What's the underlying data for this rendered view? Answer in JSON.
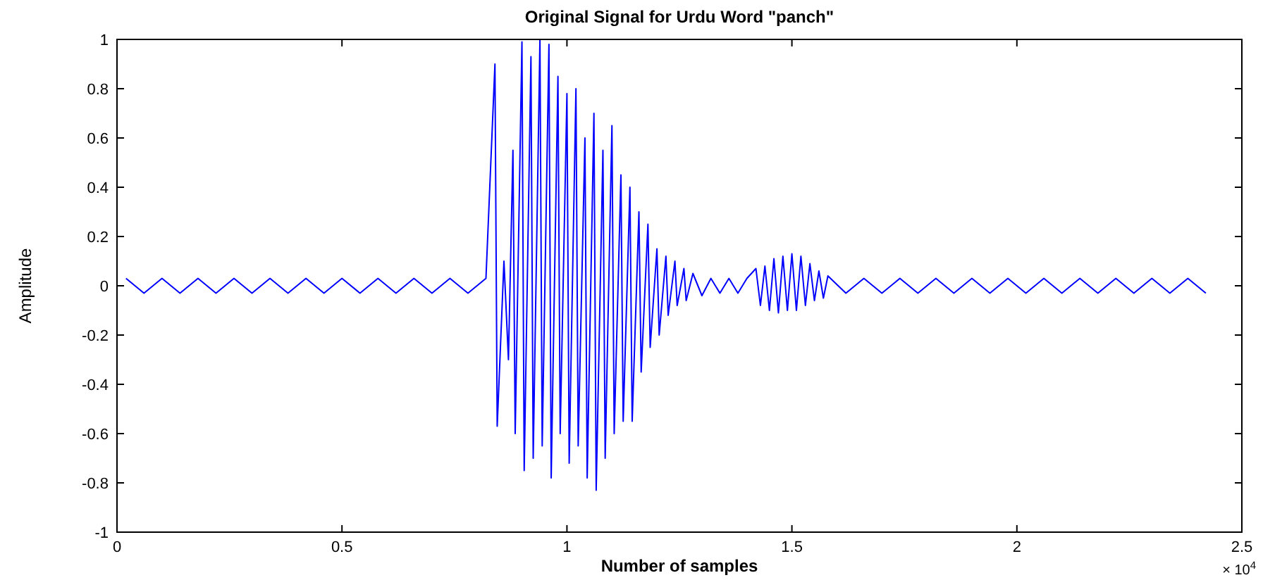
{
  "chart_data": {
    "type": "line",
    "title": "Original Signal for Urdu Word \"panch\"",
    "xlabel": "Number of samples",
    "ylabel": "Amplitude",
    "annotations": [
      "× 10$^{4}$"
    ],
    "xlim": [
      0,
      2.5
    ],
    "xticks": [
      0,
      0.5,
      1,
      1.5,
      2,
      2.5
    ],
    "ylim": [
      -1,
      1
    ],
    "yticks": [
      -1,
      -0.8,
      -0.6,
      -0.4,
      -0.2,
      0,
      0.2,
      0.4,
      0.6,
      0.8,
      1
    ],
    "grid": false,
    "series": [
      {
        "color": "#0000ff",
        "x": [
          0.02,
          0.06,
          0.1,
          0.14,
          0.18,
          0.22,
          0.26,
          0.3,
          0.34,
          0.38,
          0.42,
          0.46,
          0.5,
          0.54,
          0.58,
          0.62,
          0.66,
          0.7,
          0.74,
          0.78,
          0.82,
          0.84,
          0.845,
          0.86,
          0.87,
          0.88,
          0.885,
          0.9,
          0.905,
          0.92,
          0.925,
          0.94,
          0.945,
          0.96,
          0.965,
          0.98,
          0.985,
          1.0,
          1.005,
          1.02,
          1.025,
          1.04,
          1.045,
          1.06,
          1.065,
          1.08,
          1.085,
          1.1,
          1.105,
          1.12,
          1.125,
          1.14,
          1.145,
          1.16,
          1.165,
          1.18,
          1.185,
          1.2,
          1.205,
          1.22,
          1.225,
          1.24,
          1.245,
          1.26,
          1.265,
          1.28,
          1.3,
          1.32,
          1.34,
          1.36,
          1.38,
          1.4,
          1.42,
          1.43,
          1.44,
          1.45,
          1.46,
          1.47,
          1.48,
          1.49,
          1.5,
          1.51,
          1.52,
          1.53,
          1.54,
          1.55,
          1.56,
          1.57,
          1.58,
          1.62,
          1.66,
          1.7,
          1.74,
          1.78,
          1.82,
          1.86,
          1.9,
          1.94,
          1.98,
          2.02,
          2.06,
          2.1,
          2.14,
          2.18,
          2.22,
          2.26,
          2.3,
          2.34,
          2.38,
          2.42
        ],
        "values": [
          0.03,
          -0.03,
          0.03,
          -0.03,
          0.03,
          -0.03,
          0.03,
          -0.03,
          0.03,
          -0.03,
          0.03,
          -0.03,
          0.03,
          -0.03,
          0.03,
          -0.03,
          0.03,
          -0.03,
          0.03,
          -0.03,
          0.03,
          0.9,
          -0.57,
          0.1,
          -0.3,
          0.55,
          -0.6,
          0.99,
          -0.75,
          0.93,
          -0.7,
          1.0,
          -0.65,
          0.98,
          -0.78,
          0.85,
          -0.6,
          0.78,
          -0.72,
          0.8,
          -0.65,
          0.6,
          -0.78,
          0.7,
          -0.83,
          0.55,
          -0.7,
          0.65,
          -0.6,
          0.45,
          -0.55,
          0.4,
          -0.55,
          0.3,
          -0.35,
          0.25,
          -0.25,
          0.15,
          -0.2,
          0.12,
          -0.12,
          0.1,
          -0.08,
          0.07,
          -0.06,
          0.05,
          -0.04,
          0.03,
          -0.03,
          0.03,
          -0.03,
          0.03,
          0.07,
          -0.08,
          0.08,
          -0.1,
          0.11,
          -0.11,
          0.12,
          -0.1,
          0.13,
          -0.1,
          0.12,
          -0.08,
          0.09,
          -0.06,
          0.06,
          -0.05,
          0.04,
          -0.03,
          0.03,
          -0.03,
          0.03,
          -0.03,
          0.03,
          -0.03,
          0.03,
          -0.03,
          0.03,
          -0.03,
          0.03,
          -0.03,
          0.03,
          -0.03,
          0.03,
          -0.03,
          0.03,
          -0.03,
          0.03,
          -0.03
        ]
      }
    ]
  }
}
